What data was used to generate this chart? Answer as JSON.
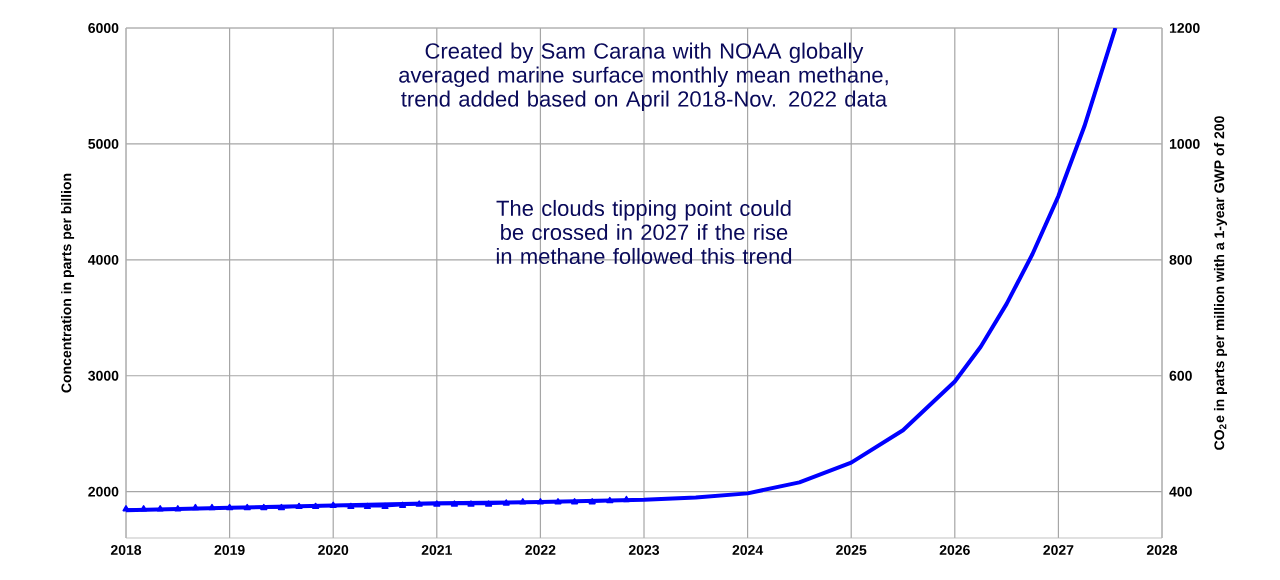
{
  "chart_data": {
    "type": "line",
    "title": "Created by Sam Carana with NOAA globally averaged marine surface monthly mean methane, trend added based on April 2018-Nov. 2022 data",
    "annotations": [
      "The clouds tipping point could be crossed in 2027 if the rise in methane followed this trend"
    ],
    "ylabel": "Concentration in parts per billion",
    "y2label": "CO$_{2}$e in parts per million with a 1-year GWP of 200",
    "xlim": [
      2018,
      2028
    ],
    "xticks": [
      2018,
      2019,
      2020,
      2021,
      2022,
      2023,
      2024,
      2025,
      2026,
      2027,
      2028
    ],
    "ylim": [
      1600,
      6000
    ],
    "yticks": [
      2000,
      3000,
      4000,
      5000,
      6000
    ],
    "y2lim": [
      320,
      1200
    ],
    "y2ticks": [
      400,
      600,
      800,
      1000,
      1200
    ],
    "grid": true,
    "series": [
      {
        "color": "#0000ff",
        "marker": "triangle",
        "x": [
          2018.0,
          2018.17,
          2018.33,
          2018.5,
          2018.67,
          2018.83,
          2019.0,
          2019.17,
          2019.33,
          2019.5,
          2019.67,
          2019.83,
          2020.0,
          2020.17,
          2020.33,
          2020.5,
          2020.67,
          2020.83,
          2021.0,
          2021.17,
          2021.33,
          2021.5,
          2021.67,
          2021.83,
          2022.0,
          2022.17,
          2022.33,
          2022.5,
          2022.67,
          2022.83
        ],
        "values": [
          1850,
          1850,
          1850,
          1850,
          1860,
          1860,
          1860,
          1860,
          1860,
          1860,
          1870,
          1870,
          1880,
          1870,
          1870,
          1870,
          1880,
          1890,
          1890,
          1890,
          1890,
          1890,
          1900,
          1910,
          1910,
          1910,
          1910,
          1910,
          1920,
          1930
        ]
      },
      {
        "color": "#0000ff",
        "marker": "none",
        "x": [
          2018,
          2019,
          2020,
          2021,
          2022,
          2023,
          2023.5,
          2024,
          2024.5,
          2025,
          2025.5,
          2026,
          2026.25,
          2026.5,
          2026.75,
          2027,
          2027.25,
          2027.55
        ],
        "values": [
          1840,
          1860,
          1880,
          1900,
          1910,
          1930,
          1950,
          1985,
          2080,
          2250,
          2530,
          2950,
          3250,
          3620,
          4050,
          4550,
          5150,
          6000
        ]
      }
    ]
  }
}
